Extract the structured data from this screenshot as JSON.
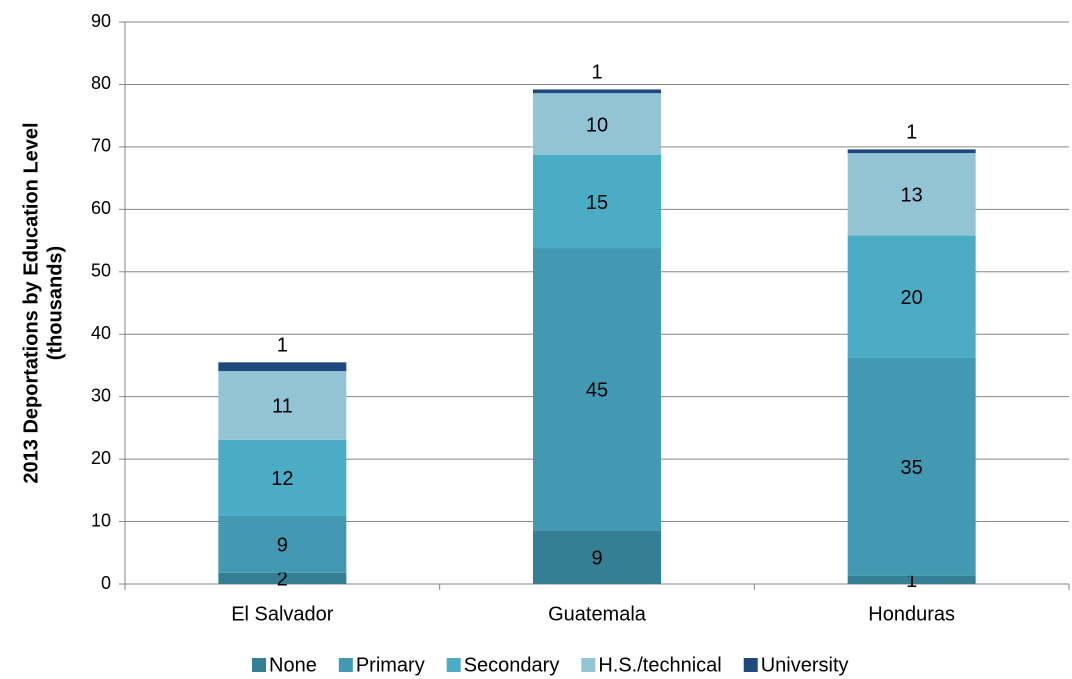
{
  "chart_data": {
    "type": "stacked_bar",
    "y_label": [
      "2013 Deportations by Education Level",
      "(thousands)"
    ],
    "categories": [
      "El Salvador",
      "Guatemala",
      "Honduras"
    ],
    "series": [
      {
        "name": "None",
        "color": "#357f94",
        "values": [
          1.8,
          8.6,
          1.3
        ],
        "value_labels": [
          "2",
          "9",
          "1"
        ]
      },
      {
        "name": "Primary",
        "color": "#4299b1",
        "values": [
          9.1,
          45.2,
          34.9
        ],
        "value_labels": [
          "9",
          "45",
          "35"
        ]
      },
      {
        "name": "Secondary",
        "color": "#4bacc6",
        "values": [
          12.2,
          14.9,
          19.6
        ],
        "value_labels": [
          "12",
          "15",
          "20"
        ]
      },
      {
        "name": "H.S./technical",
        "color": "#93c4d6",
        "values": [
          11.0,
          9.9,
          13.2
        ],
        "value_labels": [
          "11",
          "10",
          "13"
        ]
      },
      {
        "name": "University",
        "color": "#1f497d",
        "values": [
          1.4,
          0.6,
          0.6
        ],
        "value_labels": [
          "1",
          "1",
          "1"
        ]
      }
    ],
    "ylim": [
      0,
      90
    ],
    "yticks": [
      0,
      10,
      20,
      30,
      40,
      50,
      60,
      70,
      80,
      90
    ],
    "grid": true,
    "legend": "bottom"
  }
}
